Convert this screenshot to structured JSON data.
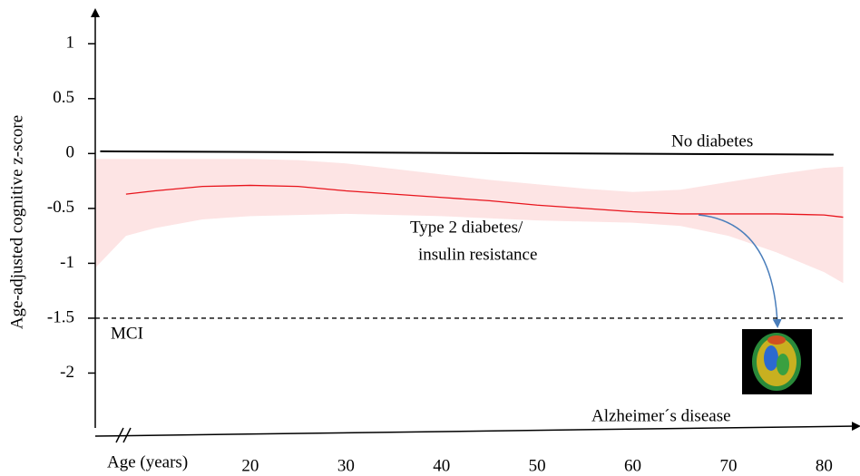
{
  "chart_data": {
    "type": "line",
    "y_label": "Age-adjusted cognitive z-score",
    "x_label": "Age (years)",
    "xlim": [
      3.5,
      83
    ],
    "ylim": [
      -2.5,
      1.25
    ],
    "xticks": [
      20,
      30,
      40,
      50,
      60,
      70,
      80
    ],
    "yticks": [
      -2,
      -1.5,
      -1,
      -0.5,
      0,
      0.5,
      1
    ],
    "series": [
      {
        "color": "#000000",
        "x": [
          4.3,
          81
        ],
        "values": [
          0.02,
          -0.01
        ]
      },
      {
        "color": "#e8141c",
        "x": [
          7,
          10,
          15,
          20,
          25,
          30,
          35,
          40,
          45,
          50,
          55,
          60,
          65,
          70,
          75,
          80,
          82
        ],
        "values": [
          -0.37,
          -0.34,
          -0.3,
          -0.29,
          -0.3,
          -0.34,
          -0.37,
          -0.4,
          -0.43,
          -0.47,
          -0.5,
          -0.53,
          -0.55,
          -0.55,
          -0.55,
          -0.56,
          -0.58
        ]
      }
    ],
    "band": {
      "color": "#fde4e4",
      "x": [
        3.8,
        7,
        10,
        15,
        20,
        25,
        30,
        35,
        40,
        45,
        50,
        55,
        60,
        65,
        70,
        75,
        80,
        82
      ],
      "upper": [
        -0.05,
        -0.05,
        -0.05,
        -0.05,
        -0.05,
        -0.06,
        -0.09,
        -0.14,
        -0.19,
        -0.24,
        -0.28,
        -0.32,
        -0.35,
        -0.33,
        -0.26,
        -0.19,
        -0.13,
        -0.12
      ],
      "lower": [
        -1.04,
        -0.75,
        -0.68,
        -0.6,
        -0.57,
        -0.56,
        -0.55,
        -0.56,
        -0.57,
        -0.59,
        -0.61,
        -0.62,
        -0.63,
        -0.66,
        -0.75,
        -0.9,
        -1.08,
        -1.18
      ]
    },
    "threshold": {
      "value": -1.5,
      "label": "MCI"
    },
    "annotations": [
      "No diabetes",
      "Type 2 diabetes/",
      "insulin resistance",
      "Alzheimer´s disease"
    ]
  }
}
